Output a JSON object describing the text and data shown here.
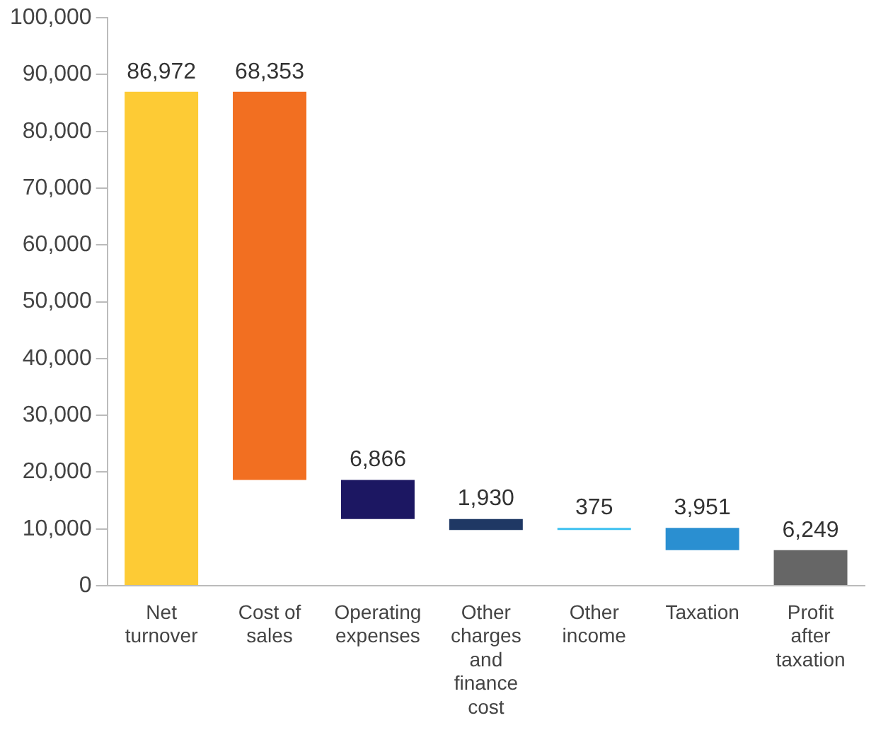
{
  "chart_data": {
    "type": "bar",
    "categories": [
      "Net turnover",
      "Cost of sales",
      "Operating expenses",
      "Other charges and finance cost",
      "Other income",
      "Taxation",
      "Profit after taxation"
    ],
    "values": [
      86972,
      68353,
      6866,
      1930,
      375,
      3951,
      6249
    ],
    "base": [
      0,
      18619,
      11753,
      9823,
      9823,
      6247,
      0
    ],
    "colors": [
      "#fdcb35",
      "#f26f21",
      "#1c1762",
      "#1f3864",
      "#3ec1f0",
      "#2a8fd1",
      "#666666"
    ],
    "ylim": [
      0,
      100000
    ],
    "yticks": [
      {
        "value": 0,
        "label": "0"
      },
      {
        "value": 10000,
        "label": "10,000"
      },
      {
        "value": 20000,
        "label": "20,000"
      },
      {
        "value": 30000,
        "label": "30,000"
      },
      {
        "value": 40000,
        "label": "40,000"
      },
      {
        "value": 50000,
        "label": "50,000"
      },
      {
        "value": 60000,
        "label": "60,000"
      },
      {
        "value": 70000,
        "label": "70,000"
      },
      {
        "value": 80000,
        "label": "80,000"
      },
      {
        "value": 90000,
        "label": "90,000"
      },
      {
        "value": 100000,
        "label": "100,000"
      }
    ],
    "value_labels": [
      "86,972",
      "68,353",
      "6,866",
      "1,930",
      "375",
      "3,951",
      "6,249"
    ],
    "grid": false,
    "legend": false
  }
}
